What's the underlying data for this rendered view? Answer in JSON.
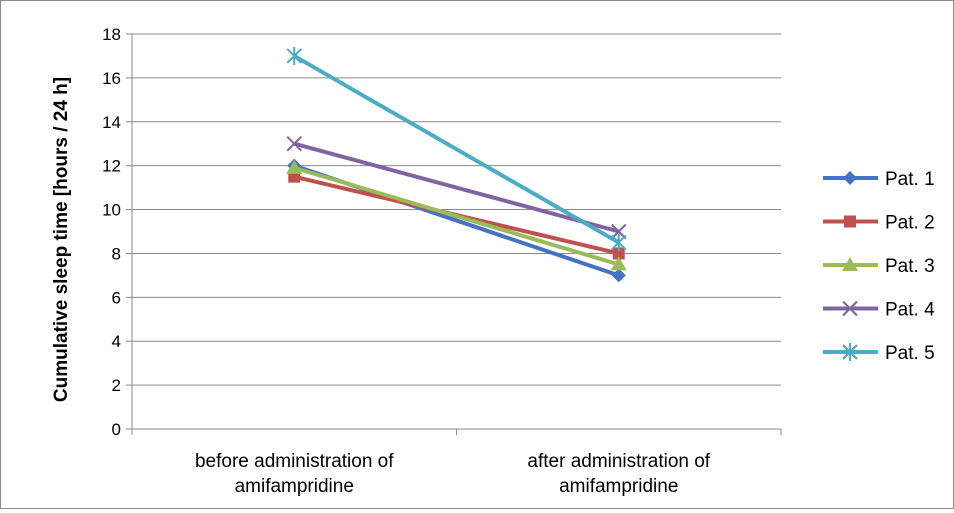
{
  "chart_data": {
    "type": "line",
    "title": "",
    "ylabel": "Cumulative sleep time [hours / 24 h]",
    "xlabel": "",
    "categories": [
      [
        "before administration of",
        "amifampridine"
      ],
      [
        "after administration of",
        "amifampridine"
      ]
    ],
    "ylim": [
      0,
      18
    ],
    "yticks": [
      0,
      2,
      4,
      6,
      8,
      10,
      12,
      14,
      16,
      18
    ],
    "grid": "horizontal",
    "legend": "right",
    "series": [
      {
        "name": "Pat. 1",
        "values": [
          12,
          7
        ],
        "color": "#4472C4",
        "marker": "diamond"
      },
      {
        "name": "Pat. 2",
        "values": [
          11.5,
          8
        ],
        "color": "#C0504D",
        "marker": "square"
      },
      {
        "name": "Pat. 3",
        "values": [
          11.9,
          7.5
        ],
        "color": "#9BBB59",
        "marker": "triangle"
      },
      {
        "name": "Pat. 4",
        "values": [
          13,
          9
        ],
        "color": "#8064A2",
        "marker": "x"
      },
      {
        "name": "Pat. 5",
        "values": [
          17,
          8.5
        ],
        "color": "#4BACC6",
        "marker": "star"
      }
    ]
  }
}
